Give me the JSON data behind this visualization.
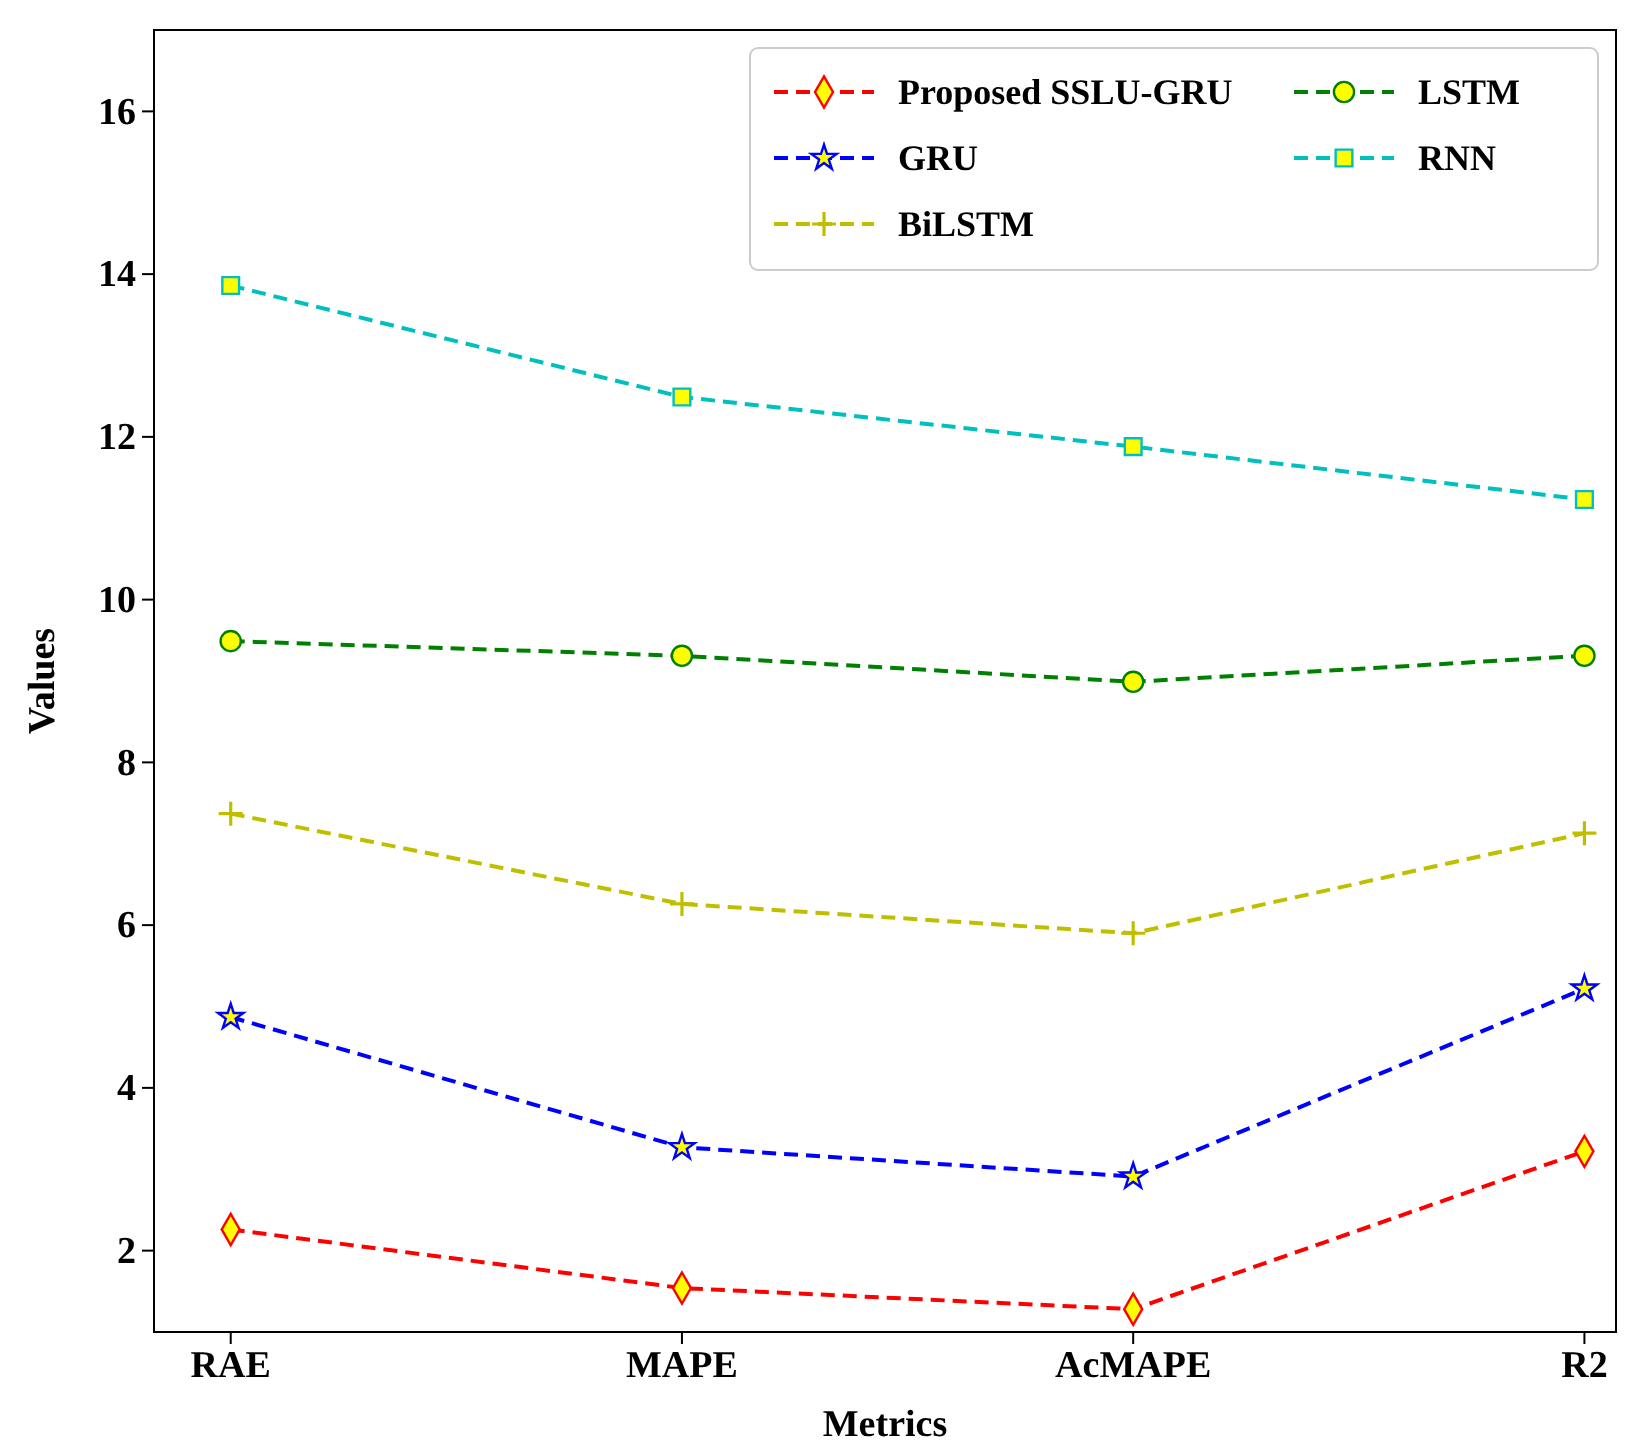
{
  "chart_data": {
    "type": "line",
    "xlabel": "Metrics",
    "ylabel": "Values",
    "categories": [
      "RAE",
      "MAPE",
      "AcMAPE",
      "R2"
    ],
    "series": [
      {
        "name": "Proposed SSLU-GRU",
        "color": "#ff0000",
        "marker": "diamond",
        "values": [
          2.26,
          1.54,
          1.28,
          3.22
        ]
      },
      {
        "name": "GRU",
        "color": "#0000ff",
        "marker": "star",
        "values": [
          4.87,
          3.27,
          2.91,
          5.22
        ]
      },
      {
        "name": "BiLSTM",
        "color": "#bfbf00",
        "marker": "cross",
        "values": [
          7.37,
          6.26,
          5.9,
          7.13
        ]
      },
      {
        "name": "LSTM",
        "color": "#008000",
        "marker": "circle",
        "values": [
          9.49,
          9.31,
          8.99,
          9.31
        ]
      },
      {
        "name": "RNN",
        "color": "#00bfbf",
        "marker": "square",
        "values": [
          13.86,
          12.49,
          11.88,
          11.23
        ]
      }
    ],
    "ylim": [
      1,
      17
    ],
    "yticks": [
      2,
      4,
      6,
      8,
      10,
      12,
      14,
      16
    ],
    "line_style": "dashed",
    "legend": "top right",
    "grid": false
  }
}
